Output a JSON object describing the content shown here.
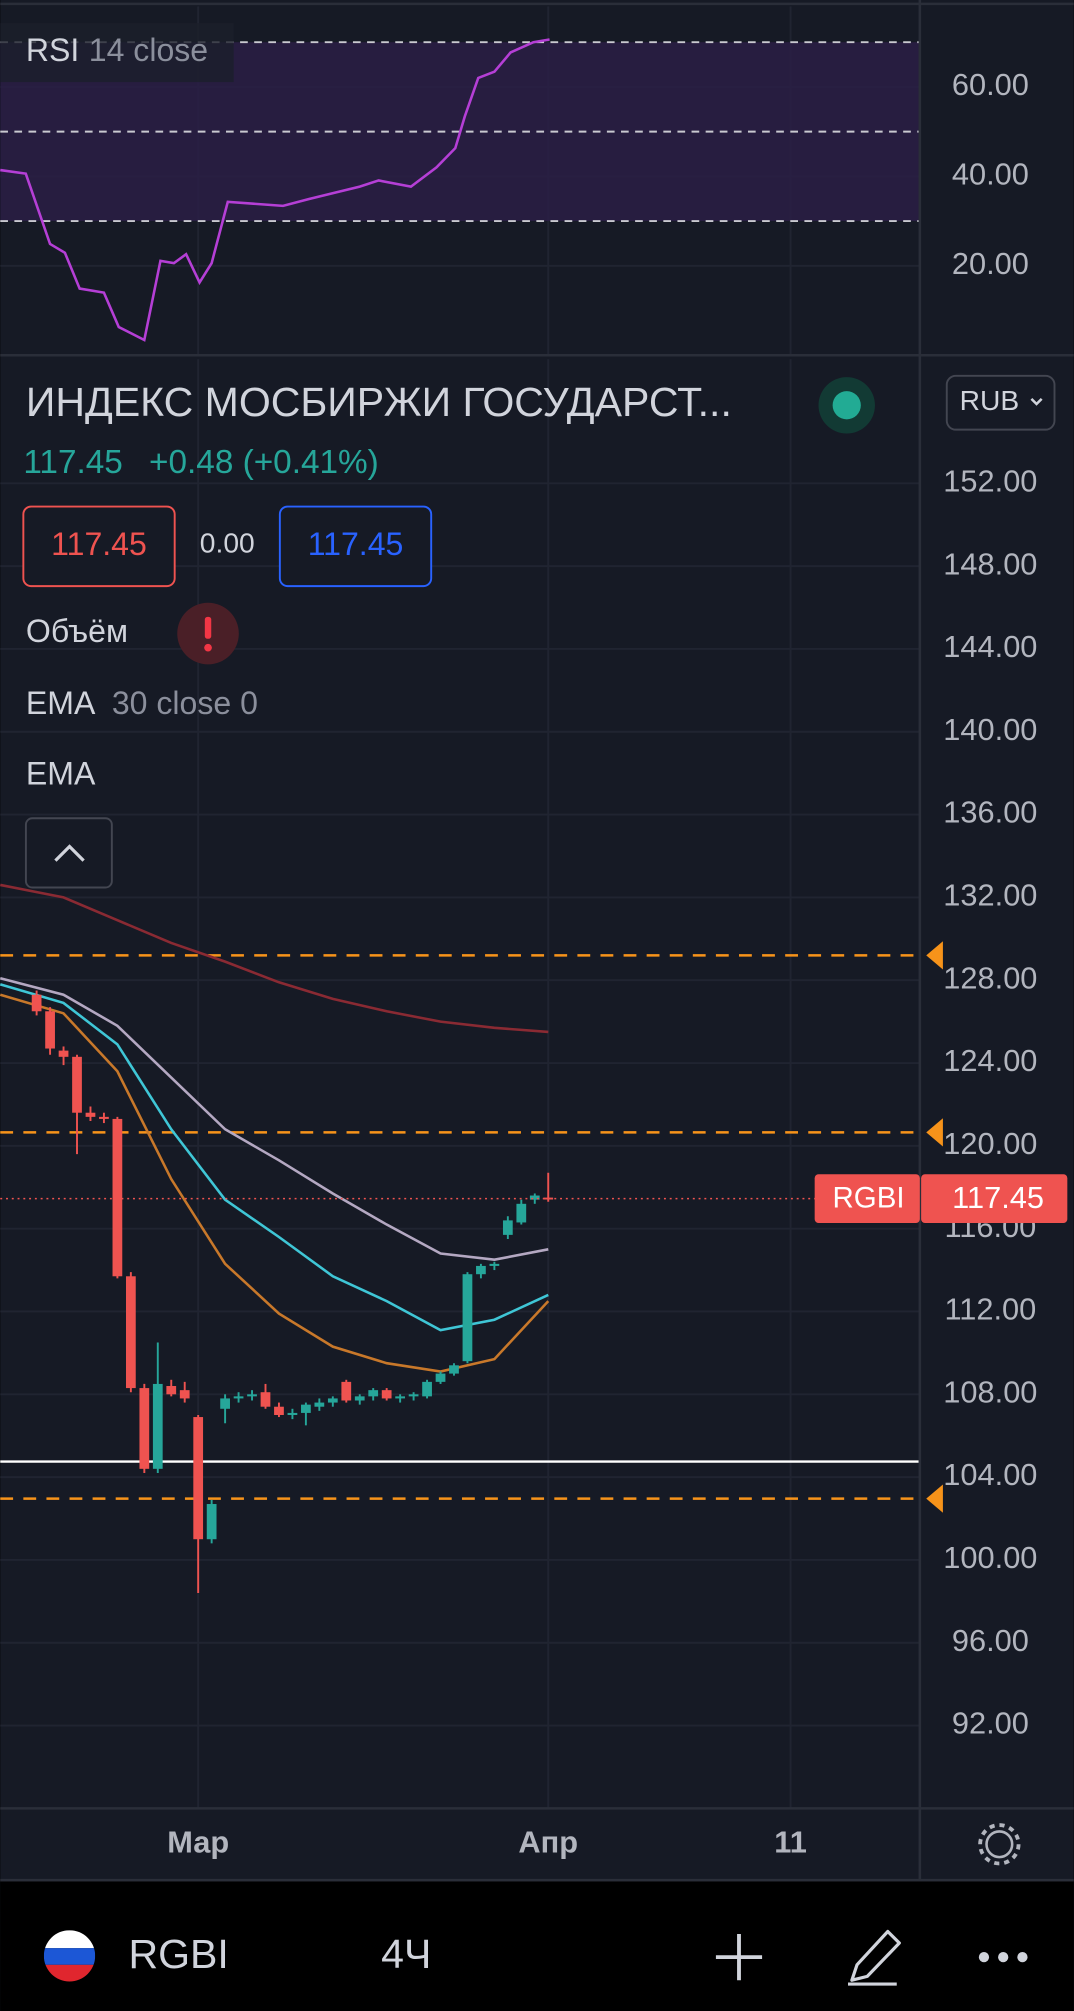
{
  "header": {
    "title": "ИНДЕКС МОСБИРЖИ ГОСУДАРСТ...",
    "price": "117.45",
    "change": "+0.48 (+0.41%)",
    "bid": "117.45",
    "spread": "0.00",
    "ask": "117.45",
    "currency": "RUB",
    "indicators": [
      {
        "name": "Объём"
      },
      {
        "name": "EMA",
        "params": "30 close 0"
      },
      {
        "name": "EMA"
      }
    ]
  },
  "bottom_bar": {
    "symbol": "RGBI",
    "interval": "4Ч"
  },
  "chart_data": [
    {
      "type": "line",
      "label": "RSI",
      "params": "14 close",
      "x": [
        -2.7,
        -0.8,
        1.0,
        2.1,
        3.2,
        5.0,
        6.1,
        8.0,
        9.2,
        10.2,
        11.1,
        12.1,
        13.0,
        14.2,
        18.3,
        20.2,
        22.1,
        24.0,
        25.4,
        27.8,
        29.7,
        31.1,
        31.8,
        32.8,
        34.0,
        35.2,
        36.9,
        38.1
      ],
      "series": [
        {
          "color": "#b53fd6",
          "values": [
            41.4,
            40.6,
            24.9,
            22.9,
            14.9,
            14.0,
            6.3,
            3.4,
            21.1,
            20.6,
            22.6,
            16.3,
            20.6,
            34.3,
            33.4,
            34.9,
            36.3,
            37.7,
            39.1,
            37.7,
            42.0,
            46.3,
            53.4,
            62.0,
            63.4,
            67.7,
            70.0,
            70.6
          ]
        }
      ],
      "band": [
        30,
        70
      ],
      "band_color": "#2a1f45",
      "levels": [
        30,
        50,
        70
      ],
      "xlim": [
        -2.7,
        65.6
      ],
      "ylim": [
        0,
        78
      ],
      "yticks": [
        {
          "value": 20,
          "label": "20.00"
        },
        {
          "value": 40,
          "label": "40.00"
        },
        {
          "value": 60,
          "label": "60.00"
        }
      ]
    },
    {
      "type": "candlestick",
      "up_color": "#26a69a",
      "down_color": "#ef5350",
      "x": [
        0,
        1,
        2,
        3,
        4,
        5,
        6,
        7,
        8,
        9,
        10,
        11,
        12,
        13,
        14,
        15,
        16,
        17,
        18,
        19,
        20,
        21,
        22,
        23,
        24,
        25,
        26,
        27,
        28,
        29,
        30,
        31,
        32,
        33,
        34,
        35,
        36,
        37,
        38
      ],
      "ohlc": [
        [
          127.3,
          127.5,
          126.3,
          126.5
        ],
        [
          126.5,
          126.7,
          124.4,
          124.7
        ],
        [
          124.6,
          124.8,
          123.9,
          124.3
        ],
        [
          124.3,
          124.4,
          119.6,
          121.6
        ],
        [
          121.6,
          121.9,
          121.2,
          121.4
        ],
        [
          121.4,
          121.6,
          121.1,
          121.3
        ],
        [
          121.3,
          121.4,
          113.6,
          113.7
        ],
        [
          113.7,
          113.9,
          108.1,
          108.3
        ],
        [
          108.3,
          108.5,
          104.2,
          104.4
        ],
        [
          104.4,
          110.5,
          104.2,
          108.5
        ],
        [
          108.4,
          108.7,
          107.9,
          108.0
        ],
        [
          108.2,
          108.6,
          107.6,
          107.8
        ],
        [
          106.9,
          107.0,
          98.4,
          101.0
        ],
        [
          101.0,
          102.9,
          100.8,
          102.7
        ],
        [
          107.3,
          108.0,
          106.6,
          107.8
        ],
        [
          107.8,
          108.1,
          107.6,
          107.9
        ],
        [
          107.9,
          108.2,
          107.7,
          108.0
        ],
        [
          108.1,
          108.5,
          107.3,
          107.4
        ],
        [
          107.4,
          107.6,
          106.9,
          107.0
        ],
        [
          107.0,
          107.3,
          106.8,
          107.1
        ],
        [
          107.1,
          107.6,
          106.5,
          107.5
        ],
        [
          107.4,
          107.8,
          107.2,
          107.6
        ],
        [
          107.6,
          107.9,
          107.4,
          107.8
        ],
        [
          108.6,
          108.7,
          107.6,
          107.7
        ],
        [
          107.7,
          108.0,
          107.5,
          107.9
        ],
        [
          107.9,
          108.3,
          107.7,
          108.2
        ],
        [
          108.2,
          108.3,
          107.7,
          107.8
        ],
        [
          107.8,
          108.0,
          107.6,
          107.9
        ],
        [
          107.9,
          108.1,
          107.7,
          108.0
        ],
        [
          107.9,
          108.7,
          107.8,
          108.6
        ],
        [
          108.6,
          109.1,
          108.5,
          109.0
        ],
        [
          109.0,
          109.5,
          108.9,
          109.4
        ],
        [
          109.6,
          113.9,
          109.5,
          113.8
        ],
        [
          113.8,
          114.3,
          113.6,
          114.2
        ],
        [
          114.2,
          114.4,
          114.0,
          114.3
        ],
        [
          115.7,
          116.6,
          115.5,
          116.4
        ],
        [
          116.3,
          117.4,
          116.2,
          117.2
        ],
        [
          117.4,
          117.7,
          117.2,
          117.6
        ],
        [
          117.5,
          118.7,
          117.3,
          117.45
        ]
      ],
      "line_x": [
        -2.7,
        2,
        6,
        10,
        14,
        18,
        22,
        26,
        30,
        34,
        38
      ],
      "lines": [
        {
          "color": "#8a2a33",
          "values": [
            132.6,
            132.0,
            130.9,
            129.8,
            128.9,
            127.9,
            127.1,
            126.5,
            126.0,
            125.7,
            125.5
          ]
        },
        {
          "color": "#b4a8c2",
          "values": [
            128.1,
            127.3,
            125.8,
            123.3,
            120.8,
            119.3,
            117.7,
            116.2,
            114.8,
            114.5,
            115.0
          ]
        },
        {
          "color": "#3fc6d6",
          "values": [
            127.8,
            126.9,
            124.9,
            120.8,
            117.4,
            115.6,
            113.7,
            112.5,
            111.1,
            111.6,
            112.8
          ]
        },
        {
          "color": "#c8782a",
          "values": [
            127.3,
            126.4,
            123.6,
            118.4,
            114.3,
            111.9,
            110.3,
            109.5,
            109.1,
            109.7,
            112.5
          ]
        }
      ],
      "hlines": [
        {
          "value": 129.2,
          "color": "#f7931a",
          "style": "dashed"
        },
        {
          "value": 120.65,
          "color": "#f7931a",
          "style": "dashed"
        },
        {
          "value": 102.96,
          "color": "#f7931a",
          "style": "dashed"
        },
        {
          "value": 104.75,
          "color": "#ffffff",
          "style": "solid"
        }
      ],
      "symbol_tag": "RGBI",
      "last_price": 117.45,
      "xlim": [
        -2.7,
        65.6
      ],
      "ylim": [
        88,
        158
      ],
      "xticks": [
        {
          "value": 12,
          "label": "Мар"
        },
        {
          "value": 38,
          "label": "Апр"
        },
        {
          "value": 56,
          "label": "11"
        }
      ],
      "yticks": [
        {
          "value": 92,
          "label": "92.00"
        },
        {
          "value": 96,
          "label": "96.00"
        },
        {
          "value": 100,
          "label": "100.00"
        },
        {
          "value": 104,
          "label": "104.00"
        },
        {
          "value": 108,
          "label": "108.00"
        },
        {
          "value": 112,
          "label": "112.00"
        },
        {
          "value": 116,
          "label": "116.00"
        },
        {
          "value": 120,
          "label": "120.00"
        },
        {
          "value": 124,
          "label": "124.00"
        },
        {
          "value": 128,
          "label": "128.00"
        },
        {
          "value": 132,
          "label": "132.00"
        },
        {
          "value": 136,
          "label": "136.00"
        },
        {
          "value": 140,
          "label": "140.00"
        },
        {
          "value": 144,
          "label": "144.00"
        },
        {
          "value": 148,
          "label": "148.00"
        },
        {
          "value": 152,
          "label": "152.00"
        }
      ]
    }
  ]
}
